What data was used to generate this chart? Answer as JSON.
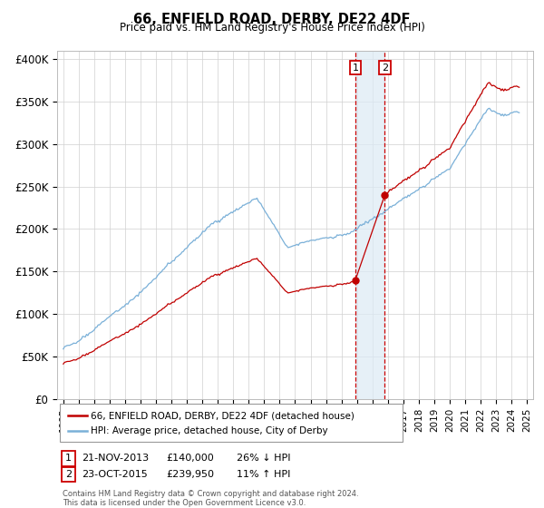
{
  "title": "66, ENFIELD ROAD, DERBY, DE22 4DF",
  "subtitle": "Price paid vs. HM Land Registry's House Price Index (HPI)",
  "ylim": [
    0,
    410000
  ],
  "yticks": [
    0,
    50000,
    100000,
    150000,
    200000,
    250000,
    300000,
    350000,
    400000
  ],
  "ytick_labels": [
    "£0",
    "£50K",
    "£100K",
    "£150K",
    "£200K",
    "£250K",
    "£300K",
    "£350K",
    "£400K"
  ],
  "hpi_color": "#7ab0d8",
  "price_color": "#c00000",
  "vline_color": "#cc0000",
  "vshade_color": "#dceaf5",
  "sale1_x": 2013.9,
  "sale1_price": 140000,
  "sale2_x": 2015.8,
  "sale2_price": 239950,
  "sale1_num": "1",
  "sale2_num": "2",
  "legend_line1": "66, ENFIELD ROAD, DERBY, DE22 4DF (detached house)",
  "legend_line2": "HPI: Average price, detached house, City of Derby",
  "sale1_date": "21-NOV-2013",
  "sale1_price_str": "£140,000",
  "sale1_label": "26% ↓ HPI",
  "sale2_date": "23-OCT-2015",
  "sale2_price_str": "£239,950",
  "sale2_label": "11% ↑ HPI",
  "footer1": "Contains HM Land Registry data © Crown copyright and database right 2024.",
  "footer2": "This data is licensed under the Open Government Licence v3.0.",
  "background_color": "#ffffff"
}
